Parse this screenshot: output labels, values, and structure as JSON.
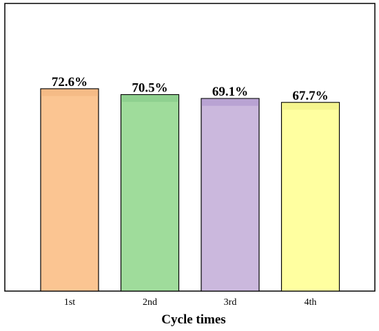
{
  "chart_data": {
    "type": "bar",
    "categories": [
      "1st",
      "2nd",
      "3rd",
      "4th"
    ],
    "values": [
      72.6,
      70.5,
      69.1,
      67.7
    ],
    "data_labels": [
      "72.6%",
      "70.5%",
      "69.1%",
      "67.7%"
    ],
    "title": "",
    "xlabel": "Cycle times",
    "ylabel": "",
    "ylim": [
      0,
      80
    ],
    "grid": false,
    "legend": "none",
    "unit": "%",
    "colors": [
      "#fbc592",
      "#9fdc9b",
      "#cbb8dd",
      "#ffffa0"
    ],
    "highlight_colors": [
      "#f5bb86",
      "#8fd08f",
      "#b9a3d3",
      "#f5f58f"
    ],
    "edge_color": "#000000"
  }
}
